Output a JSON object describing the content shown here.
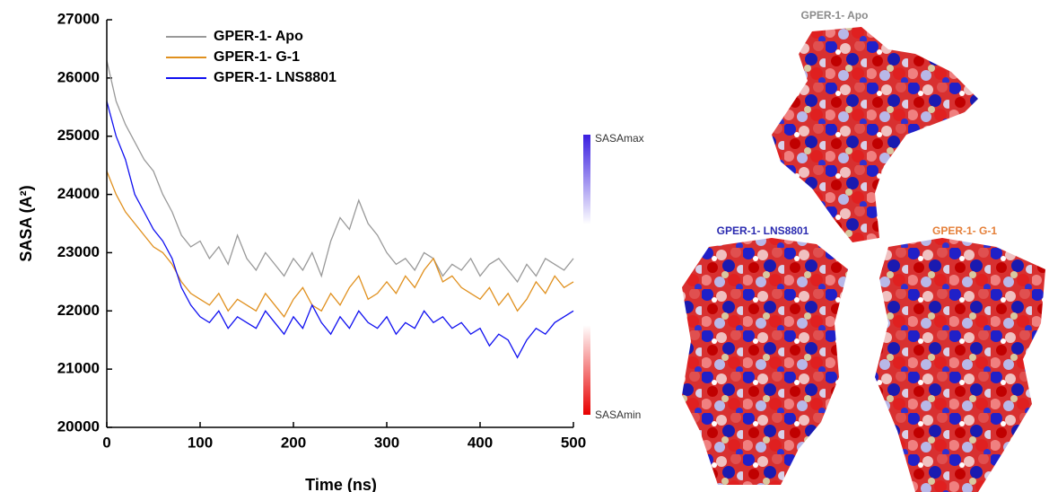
{
  "chart_data": {
    "type": "line",
    "x_label": "Time (ns)",
    "y_label": "SASA (A²)",
    "x": [
      0,
      10,
      20,
      30,
      40,
      50,
      60,
      70,
      80,
      90,
      100,
      110,
      120,
      130,
      140,
      150,
      160,
      170,
      180,
      190,
      200,
      210,
      220,
      230,
      240,
      250,
      260,
      270,
      280,
      290,
      300,
      310,
      320,
      330,
      340,
      350,
      360,
      370,
      380,
      390,
      400,
      410,
      420,
      430,
      440,
      450,
      460,
      470,
      480,
      490,
      500
    ],
    "series": [
      {
        "name": "GPER-1- Apo",
        "color": "#999999",
        "values": [
          26300,
          25600,
          25200,
          24900,
          24600,
          24400,
          24000,
          23700,
          23300,
          23100,
          23200,
          22900,
          23100,
          22800,
          23300,
          22900,
          22700,
          23000,
          22800,
          22600,
          22900,
          22700,
          23000,
          22600,
          23200,
          23600,
          23400,
          23900,
          23500,
          23300,
          23000,
          22800,
          22900,
          22700,
          23000,
          22900,
          22600,
          22800,
          22700,
          22900,
          22600,
          22800,
          22900,
          22700,
          22500,
          22800,
          22600,
          22900,
          22800,
          22700,
          22900
        ]
      },
      {
        "name": "GPER-1- G-1",
        "color": "#e0901e",
        "values": [
          24400,
          24000,
          23700,
          23500,
          23300,
          23100,
          23000,
          22800,
          22500,
          22300,
          22200,
          22100,
          22300,
          22000,
          22200,
          22100,
          22000,
          22300,
          22100,
          21900,
          22200,
          22400,
          22100,
          22000,
          22300,
          22100,
          22400,
          22600,
          22200,
          22300,
          22500,
          22300,
          22600,
          22400,
          22700,
          22900,
          22500,
          22600,
          22400,
          22300,
          22200,
          22400,
          22100,
          22300,
          22000,
          22200,
          22500,
          22300,
          22600,
          22400,
          22500
        ]
      },
      {
        "name": "GPER-1- LNS8801",
        "color": "#1010f0",
        "values": [
          25600,
          25000,
          24600,
          24000,
          23700,
          23400,
          23200,
          22900,
          22400,
          22100,
          21900,
          21800,
          22000,
          21700,
          21900,
          21800,
          21700,
          22000,
          21800,
          21600,
          21900,
          21700,
          22100,
          21800,
          21600,
          21900,
          21700,
          22000,
          21800,
          21700,
          21900,
          21600,
          21800,
          21700,
          22000,
          21800,
          21900,
          21700,
          21800,
          21600,
          21700,
          21400,
          21600,
          21500,
          21200,
          21500,
          21700,
          21600,
          21800,
          21900,
          22000
        ]
      }
    ],
    "xlim": [
      0,
      500
    ],
    "ylim": [
      20000,
      27000
    ],
    "xticks": [
      0,
      100,
      200,
      300,
      400,
      500
    ],
    "yticks": [
      20000,
      21000,
      22000,
      23000,
      24000,
      25000,
      26000,
      27000
    ],
    "legend": "upper left"
  },
  "colorbar": {
    "max_label": "SASAmax",
    "min_label": "SASAmin"
  },
  "structures": [
    {
      "label": "GPER-1- Apo",
      "color": "#8a8a8a"
    },
    {
      "label": "GPER-1- LNS8801",
      "color": "#2b2bb0"
    },
    {
      "label": "GPER-1- G-1",
      "color": "#e5803a"
    }
  ]
}
